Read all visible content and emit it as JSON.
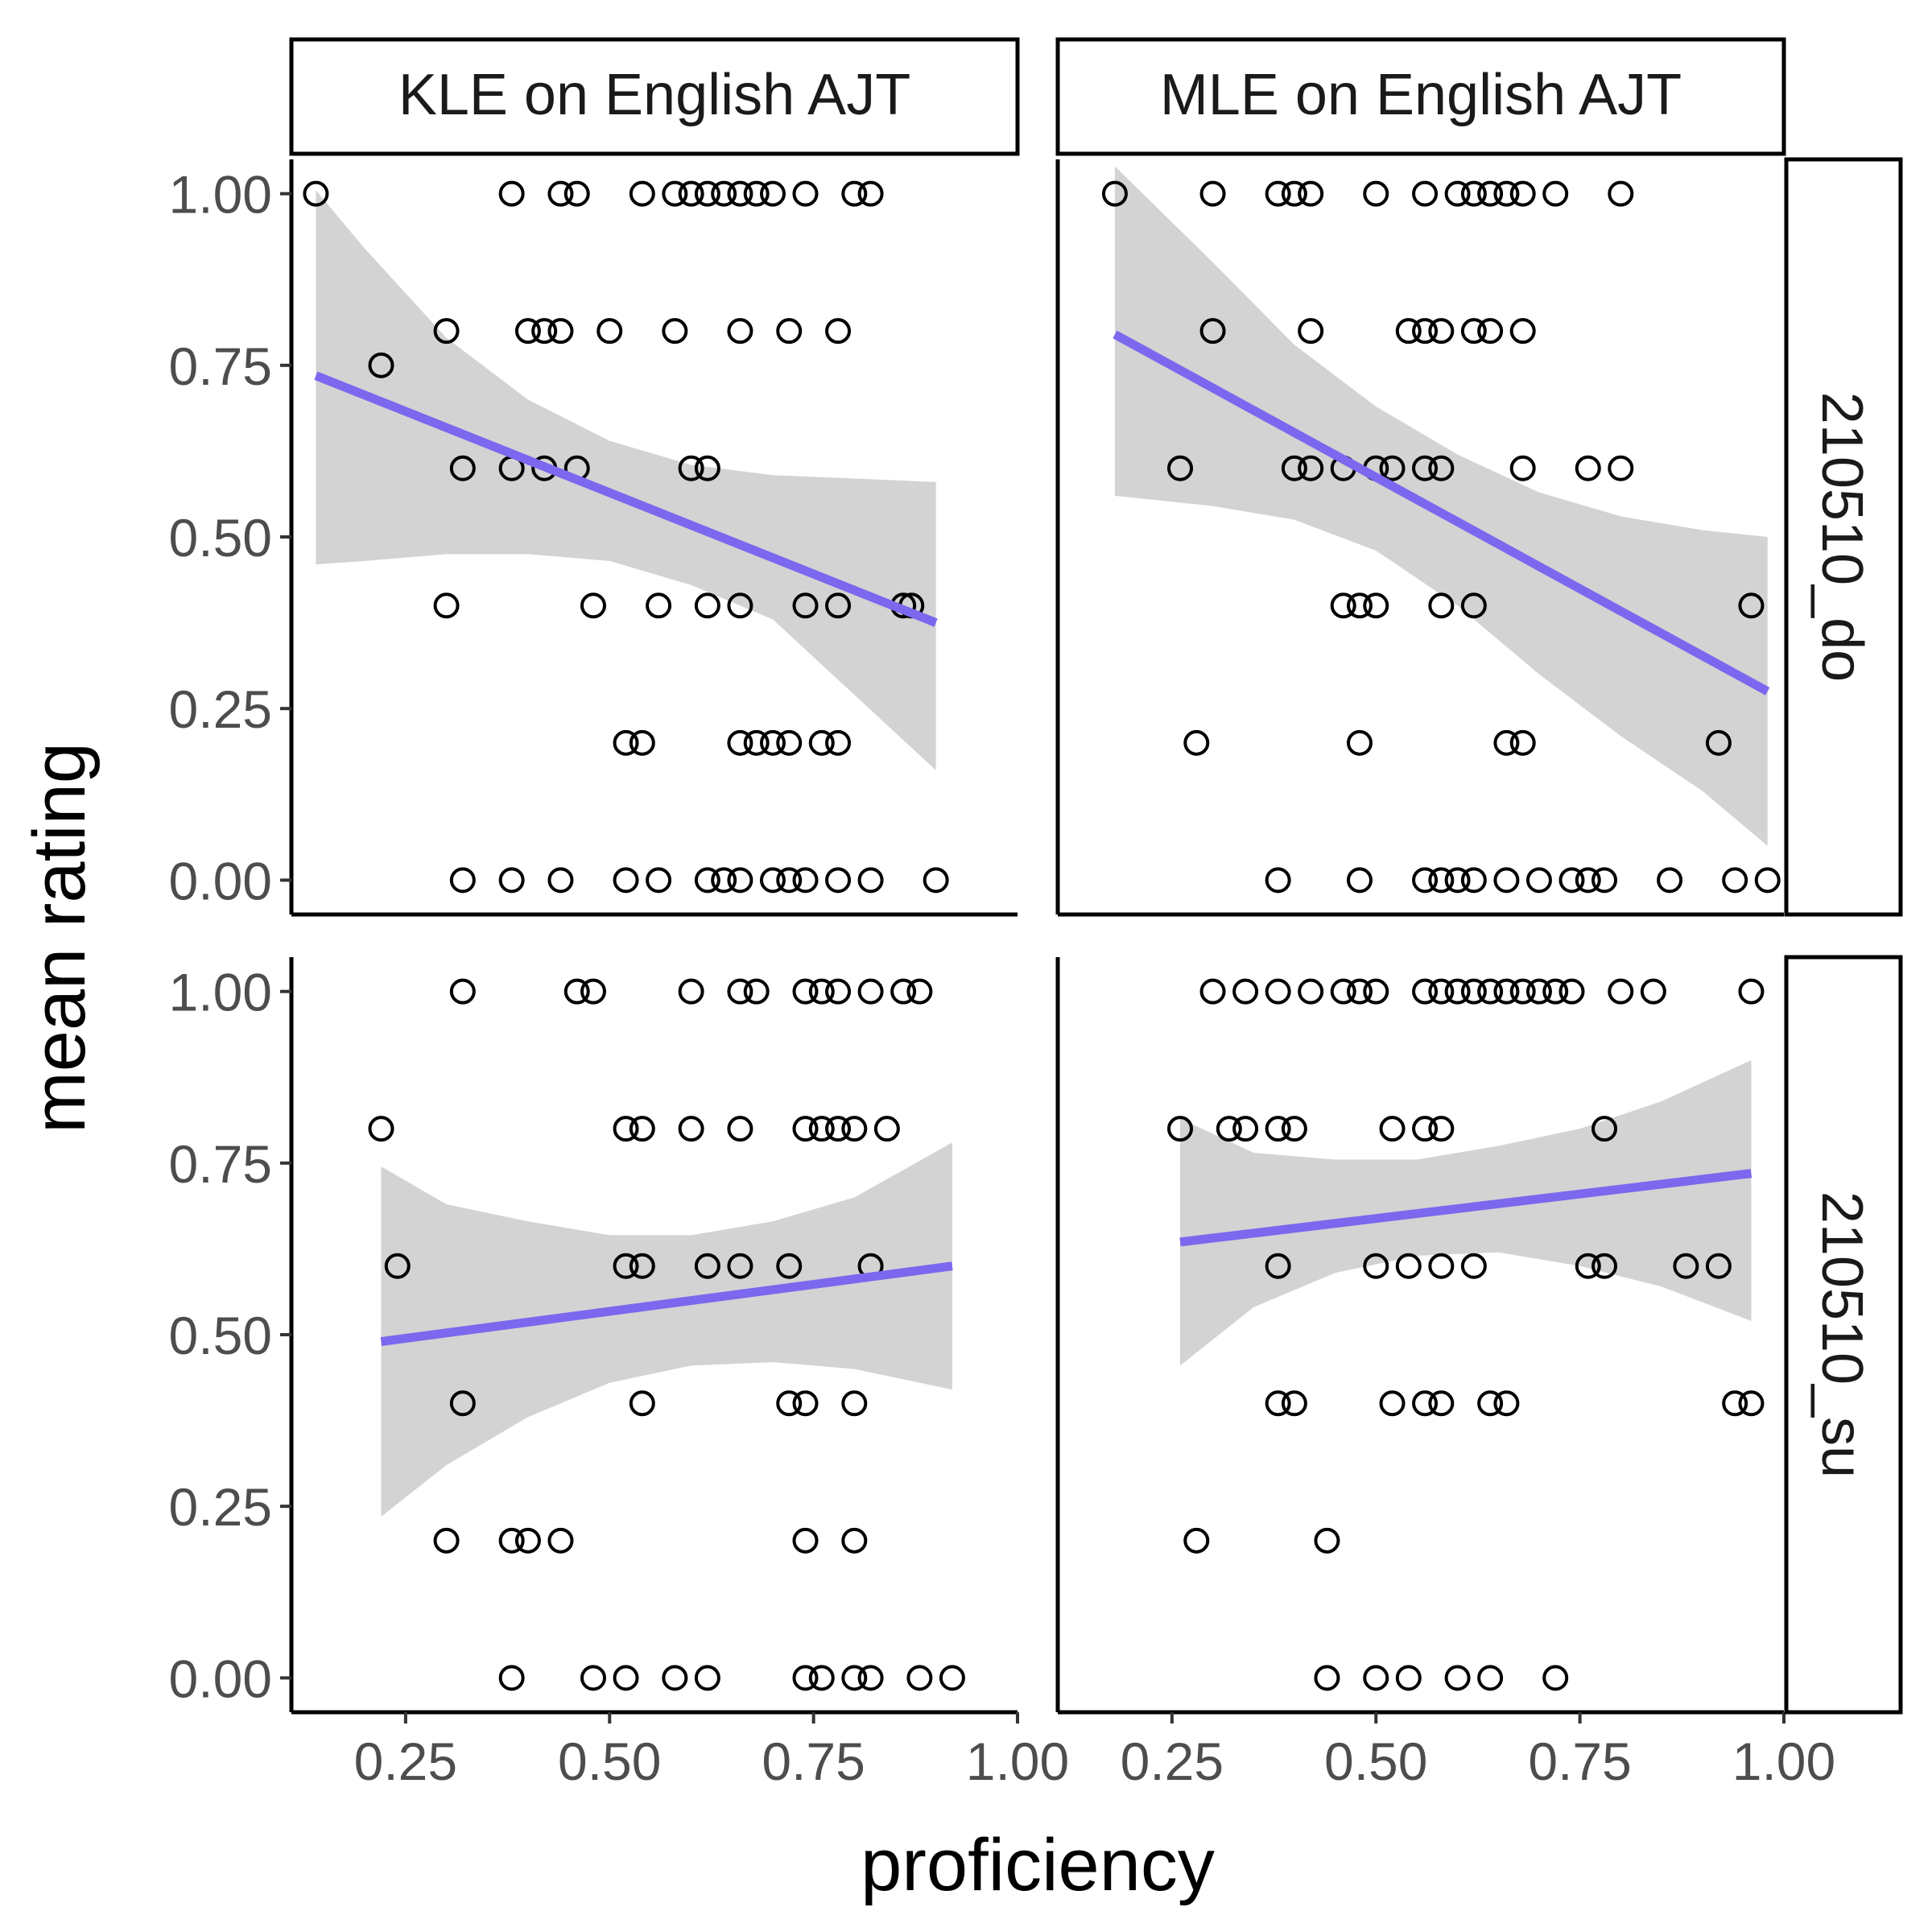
{
  "chart_data": {
    "type": "scatter",
    "xlabel": "proficiency",
    "ylabel": "mean rating",
    "xlim": [
      0.11,
      1.0
    ],
    "ylim": [
      -0.05,
      1.05
    ],
    "x_ticks": [
      0.25,
      0.5,
      0.75,
      1.0
    ],
    "x_tick_labels": [
      "0.25",
      "0.50",
      "0.75",
      "1.00"
    ],
    "y_ticks": [
      0,
      0.25,
      0.5,
      0.75,
      1.0
    ],
    "y_tick_labels": [
      "0.00",
      "0.25",
      "0.50",
      "0.75",
      "1.00"
    ],
    "columns": [
      "KLE on English AJT",
      "MLE on English AJT"
    ],
    "rows": [
      "210510_do",
      "210510_su"
    ],
    "grid": false,
    "colors": {
      "fit_line": "#7B68EE",
      "ribbon": "#D3D3D3",
      "points": "#000000"
    },
    "panels": [
      {
        "row": 0,
        "col": 0,
        "points": [
          [
            0.14,
            1.0
          ],
          [
            0.38,
            1.0
          ],
          [
            0.44,
            1.0
          ],
          [
            0.46,
            1.0
          ],
          [
            0.54,
            1.0
          ],
          [
            0.58,
            1.0
          ],
          [
            0.6,
            1.0
          ],
          [
            0.62,
            1.0
          ],
          [
            0.64,
            1.0
          ],
          [
            0.66,
            1.0
          ],
          [
            0.68,
            1.0
          ],
          [
            0.7,
            1.0
          ],
          [
            0.74,
            1.0
          ],
          [
            0.8,
            1.0
          ],
          [
            0.82,
            1.0
          ],
          [
            0.3,
            0.8
          ],
          [
            0.4,
            0.8
          ],
          [
            0.42,
            0.8
          ],
          [
            0.44,
            0.8
          ],
          [
            0.5,
            0.8
          ],
          [
            0.58,
            0.8
          ],
          [
            0.66,
            0.8
          ],
          [
            0.72,
            0.8
          ],
          [
            0.78,
            0.8
          ],
          [
            0.22,
            0.75
          ],
          [
            0.32,
            0.6
          ],
          [
            0.38,
            0.6
          ],
          [
            0.42,
            0.6
          ],
          [
            0.46,
            0.6
          ],
          [
            0.6,
            0.6
          ],
          [
            0.62,
            0.6
          ],
          [
            0.3,
            0.4
          ],
          [
            0.48,
            0.4
          ],
          [
            0.56,
            0.4
          ],
          [
            0.62,
            0.4
          ],
          [
            0.66,
            0.4
          ],
          [
            0.74,
            0.4
          ],
          [
            0.78,
            0.4
          ],
          [
            0.86,
            0.4
          ],
          [
            0.87,
            0.4
          ],
          [
            0.52,
            0.2
          ],
          [
            0.54,
            0.2
          ],
          [
            0.66,
            0.2
          ],
          [
            0.68,
            0.2
          ],
          [
            0.7,
            0.2
          ],
          [
            0.72,
            0.2
          ],
          [
            0.76,
            0.2
          ],
          [
            0.78,
            0.2
          ],
          [
            0.32,
            0.0
          ],
          [
            0.38,
            0.0
          ],
          [
            0.44,
            0.0
          ],
          [
            0.52,
            0.0
          ],
          [
            0.56,
            0.0
          ],
          [
            0.62,
            0.0
          ],
          [
            0.64,
            0.0
          ],
          [
            0.66,
            0.0
          ],
          [
            0.7,
            0.0
          ],
          [
            0.72,
            0.0
          ],
          [
            0.74,
            0.0
          ],
          [
            0.78,
            0.0
          ],
          [
            0.82,
            0.0
          ],
          [
            0.9,
            0.0
          ]
        ],
        "fit": {
          "x": [
            0.14,
            0.9
          ],
          "y": [
            0.735,
            0.375
          ]
        },
        "ribbon": {
          "x": [
            0.14,
            0.2,
            0.3,
            0.4,
            0.5,
            0.6,
            0.7,
            0.8,
            0.9
          ],
          "lower": [
            0.46,
            0.465,
            0.475,
            0.475,
            0.465,
            0.43,
            0.38,
            0.27,
            0.16
          ],
          "upper": [
            1.005,
            0.92,
            0.79,
            0.7,
            0.64,
            0.605,
            0.59,
            0.585,
            0.58
          ]
        }
      },
      {
        "row": 0,
        "col": 1,
        "points": [
          [
            0.18,
            1.0
          ],
          [
            0.3,
            1.0
          ],
          [
            0.38,
            1.0
          ],
          [
            0.4,
            1.0
          ],
          [
            0.42,
            1.0
          ],
          [
            0.5,
            1.0
          ],
          [
            0.56,
            1.0
          ],
          [
            0.6,
            1.0
          ],
          [
            0.62,
            1.0
          ],
          [
            0.64,
            1.0
          ],
          [
            0.66,
            1.0
          ],
          [
            0.68,
            1.0
          ],
          [
            0.72,
            1.0
          ],
          [
            0.8,
            1.0
          ],
          [
            0.3,
            0.8
          ],
          [
            0.42,
            0.8
          ],
          [
            0.54,
            0.8
          ],
          [
            0.56,
            0.8
          ],
          [
            0.58,
            0.8
          ],
          [
            0.62,
            0.8
          ],
          [
            0.64,
            0.8
          ],
          [
            0.68,
            0.8
          ],
          [
            0.26,
            0.6
          ],
          [
            0.4,
            0.6
          ],
          [
            0.42,
            0.6
          ],
          [
            0.46,
            0.6
          ],
          [
            0.5,
            0.6
          ],
          [
            0.52,
            0.6
          ],
          [
            0.56,
            0.6
          ],
          [
            0.58,
            0.6
          ],
          [
            0.68,
            0.6
          ],
          [
            0.76,
            0.6
          ],
          [
            0.8,
            0.6
          ],
          [
            0.46,
            0.4
          ],
          [
            0.48,
            0.4
          ],
          [
            0.5,
            0.4
          ],
          [
            0.58,
            0.4
          ],
          [
            0.62,
            0.4
          ],
          [
            0.96,
            0.4
          ],
          [
            0.28,
            0.2
          ],
          [
            0.48,
            0.2
          ],
          [
            0.66,
            0.2
          ],
          [
            0.68,
            0.2
          ],
          [
            0.92,
            0.2
          ],
          [
            0.38,
            0.0
          ],
          [
            0.48,
            0.0
          ],
          [
            0.56,
            0.0
          ],
          [
            0.58,
            0.0
          ],
          [
            0.6,
            0.0
          ],
          [
            0.62,
            0.0
          ],
          [
            0.66,
            0.0
          ],
          [
            0.7,
            0.0
          ],
          [
            0.74,
            0.0
          ],
          [
            0.76,
            0.0
          ],
          [
            0.78,
            0.0
          ],
          [
            0.86,
            0.0
          ],
          [
            0.94,
            0.0
          ],
          [
            0.98,
            0.0
          ]
        ],
        "fit": {
          "x": [
            0.18,
            0.98
          ],
          "y": [
            0.795,
            0.275
          ]
        },
        "ribbon": {
          "x": [
            0.18,
            0.3,
            0.4,
            0.5,
            0.6,
            0.7,
            0.8,
            0.9,
            0.98
          ],
          "lower": [
            0.56,
            0.545,
            0.525,
            0.48,
            0.4,
            0.3,
            0.21,
            0.13,
            0.05
          ],
          "upper": [
            1.04,
            0.9,
            0.78,
            0.69,
            0.62,
            0.565,
            0.53,
            0.51,
            0.5
          ]
        }
      },
      {
        "row": 1,
        "col": 0,
        "points": [
          [
            0.32,
            1.0
          ],
          [
            0.46,
            1.0
          ],
          [
            0.48,
            1.0
          ],
          [
            0.6,
            1.0
          ],
          [
            0.66,
            1.0
          ],
          [
            0.68,
            1.0
          ],
          [
            0.74,
            1.0
          ],
          [
            0.76,
            1.0
          ],
          [
            0.78,
            1.0
          ],
          [
            0.82,
            1.0
          ],
          [
            0.86,
            1.0
          ],
          [
            0.88,
            1.0
          ],
          [
            0.22,
            0.8
          ],
          [
            0.52,
            0.8
          ],
          [
            0.54,
            0.8
          ],
          [
            0.6,
            0.8
          ],
          [
            0.66,
            0.8
          ],
          [
            0.74,
            0.8
          ],
          [
            0.76,
            0.8
          ],
          [
            0.78,
            0.8
          ],
          [
            0.8,
            0.8
          ],
          [
            0.84,
            0.8
          ],
          [
            0.24,
            0.6
          ],
          [
            0.52,
            0.6
          ],
          [
            0.54,
            0.6
          ],
          [
            0.62,
            0.6
          ],
          [
            0.66,
            0.6
          ],
          [
            0.72,
            0.6
          ],
          [
            0.82,
            0.6
          ],
          [
            0.32,
            0.4
          ],
          [
            0.54,
            0.4
          ],
          [
            0.72,
            0.4
          ],
          [
            0.74,
            0.4
          ],
          [
            0.8,
            0.4
          ],
          [
            0.3,
            0.2
          ],
          [
            0.38,
            0.2
          ],
          [
            0.4,
            0.2
          ],
          [
            0.44,
            0.2
          ],
          [
            0.74,
            0.2
          ],
          [
            0.8,
            0.2
          ],
          [
            0.38,
            0.0
          ],
          [
            0.48,
            0.0
          ],
          [
            0.52,
            0.0
          ],
          [
            0.58,
            0.0
          ],
          [
            0.62,
            0.0
          ],
          [
            0.74,
            0.0
          ],
          [
            0.76,
            0.0
          ],
          [
            0.8,
            0.0
          ],
          [
            0.82,
            0.0
          ],
          [
            0.88,
            0.0
          ],
          [
            0.92,
            0.0
          ]
        ],
        "fit": {
          "x": [
            0.22,
            0.92
          ],
          "y": [
            0.49,
            0.6
          ]
        },
        "ribbon": {
          "x": [
            0.22,
            0.3,
            0.4,
            0.5,
            0.6,
            0.7,
            0.8,
            0.92
          ],
          "lower": [
            0.235,
            0.31,
            0.38,
            0.43,
            0.455,
            0.46,
            0.45,
            0.42
          ],
          "upper": [
            0.745,
            0.69,
            0.665,
            0.645,
            0.645,
            0.665,
            0.7,
            0.78
          ]
        }
      },
      {
        "row": 1,
        "col": 1,
        "points": [
          [
            0.3,
            1.0
          ],
          [
            0.34,
            1.0
          ],
          [
            0.38,
            1.0
          ],
          [
            0.42,
            1.0
          ],
          [
            0.46,
            1.0
          ],
          [
            0.48,
            1.0
          ],
          [
            0.5,
            1.0
          ],
          [
            0.56,
            1.0
          ],
          [
            0.58,
            1.0
          ],
          [
            0.6,
            1.0
          ],
          [
            0.62,
            1.0
          ],
          [
            0.64,
            1.0
          ],
          [
            0.66,
            1.0
          ],
          [
            0.68,
            1.0
          ],
          [
            0.7,
            1.0
          ],
          [
            0.72,
            1.0
          ],
          [
            0.74,
            1.0
          ],
          [
            0.8,
            1.0
          ],
          [
            0.84,
            1.0
          ],
          [
            0.96,
            1.0
          ],
          [
            0.26,
            0.8
          ],
          [
            0.32,
            0.8
          ],
          [
            0.34,
            0.8
          ],
          [
            0.38,
            0.8
          ],
          [
            0.4,
            0.8
          ],
          [
            0.52,
            0.8
          ],
          [
            0.56,
            0.8
          ],
          [
            0.58,
            0.8
          ],
          [
            0.78,
            0.8
          ],
          [
            0.38,
            0.6
          ],
          [
            0.5,
            0.6
          ],
          [
            0.54,
            0.6
          ],
          [
            0.58,
            0.6
          ],
          [
            0.62,
            0.6
          ],
          [
            0.76,
            0.6
          ],
          [
            0.78,
            0.6
          ],
          [
            0.88,
            0.6
          ],
          [
            0.92,
            0.6
          ],
          [
            0.38,
            0.4
          ],
          [
            0.4,
            0.4
          ],
          [
            0.52,
            0.4
          ],
          [
            0.56,
            0.4
          ],
          [
            0.58,
            0.4
          ],
          [
            0.64,
            0.4
          ],
          [
            0.66,
            0.4
          ],
          [
            0.94,
            0.4
          ],
          [
            0.96,
            0.4
          ],
          [
            0.28,
            0.2
          ],
          [
            0.44,
            0.2
          ],
          [
            0.44,
            0.0
          ],
          [
            0.5,
            0.0
          ],
          [
            0.54,
            0.0
          ],
          [
            0.6,
            0.0
          ],
          [
            0.64,
            0.0
          ],
          [
            0.72,
            0.0
          ]
        ],
        "fit": {
          "x": [
            0.26,
            0.96
          ],
          "y": [
            0.635,
            0.735
          ]
        },
        "ribbon": {
          "x": [
            0.26,
            0.35,
            0.45,
            0.55,
            0.65,
            0.75,
            0.85,
            0.96
          ],
          "lower": [
            0.455,
            0.54,
            0.59,
            0.615,
            0.62,
            0.6,
            0.57,
            0.52
          ],
          "upper": [
            0.815,
            0.765,
            0.755,
            0.755,
            0.775,
            0.8,
            0.84,
            0.9
          ]
        }
      }
    ]
  }
}
